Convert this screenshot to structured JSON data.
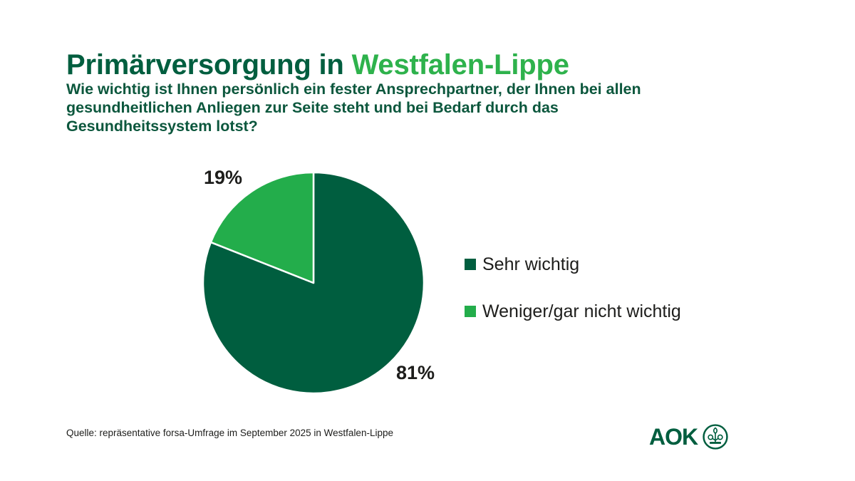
{
  "header": {
    "title_main": "Primärversorgung in",
    "title_accent": "Westfalen-Lippe",
    "question_lines": [
      "Wie wichtig ist Ihnen persönlich ein fester Ansprechpartner, der Ihnen bei allen",
      "gesundheitlichen Anliegen zur Seite steht und bei Bedarf durch das",
      "Gesundheitssystem lotst?"
    ]
  },
  "chart_data": {
    "type": "pie",
    "title": "Primärversorgung in Westfalen-Lippe",
    "question": "Wie wichtig ist Ihnen persönlich ein fester Ansprechpartner, der Ihnen bei allen gesundheitlichen Anliegen zur Seite steht und bei Bedarf durch das Gesundheitssystem lotst?",
    "slices": [
      {
        "label": "Sehr wichtig",
        "value": 81,
        "data_label": "81%",
        "color": "#005e3f"
      },
      {
        "label": "Weniger/gar nicht wichtig",
        "value": 19,
        "data_label": "19%",
        "color": "#23ad4b"
      }
    ],
    "start_angle_deg": -90,
    "direction": "clockwise",
    "slice_border_color": "#ffffff",
    "legend_position": "right",
    "data_labels_position": "outside"
  },
  "footer": {
    "source": "Quelle: repräsentative forsa-Umfrage im September 2025 in Westfalen-Lippe",
    "logo_text": "AOK"
  },
  "colors": {
    "background": "#ffffff",
    "brand_dark_green": "#005e3f",
    "brand_light_green": "#2eb24c",
    "pie_dark_green": "#005e3f",
    "pie_light_green": "#23ad4b",
    "text_black": "#1d1d1b"
  },
  "icons": {
    "logo_emblem": "aok-tree-emblem"
  }
}
